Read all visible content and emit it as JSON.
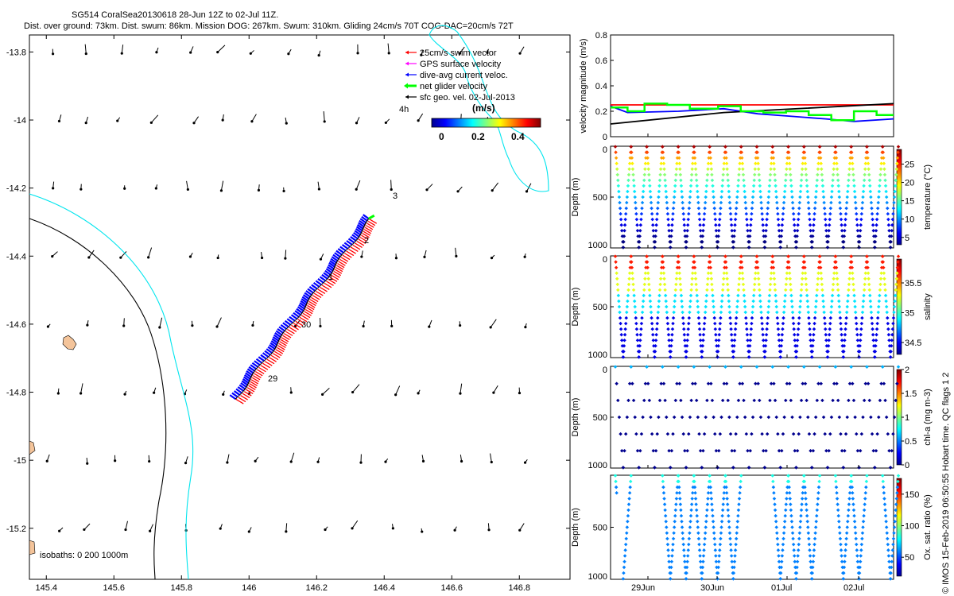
{
  "header": {
    "line1": "SG514 CoralSea20130618 28-Jun 12Z to 02-Jul 11Z.",
    "line2": "Dist. over ground: 73km. Dist. swum: 86km. Mission DOG: 267km. Swum: 310km. Gliding 24cm/s 70T COG-DAC=20cm/s 72T"
  },
  "map": {
    "legend": [
      {
        "label": "25cm/s swim vector",
        "color": "#ff0000"
      },
      {
        "label": "GPS surface velocity",
        "color": "#ff00ff"
      },
      {
        "label": "dive-avg current veloc.",
        "color": "#0000ff"
      },
      {
        "label": "net glider velocity",
        "color": "#00ff00"
      },
      {
        "label": "sfc geo. vel. 02-Jul-2013",
        "color": "#000000"
      }
    ],
    "colorbar_unit": "(m/s)",
    "colorbar_ticks": [
      "0",
      "0.2",
      "0.4"
    ],
    "isobath_label": "isobaths: 0   200  1000m",
    "age_label": "4h",
    "day_labels": [
      "3",
      "2",
      "1",
      "30",
      "29"
    ],
    "track_start": [
      145.96,
      -14.82
    ],
    "track_end": [
      146.36,
      -14.29
    ],
    "isobath_colors": {
      "c0": "#000000",
      "c200": "#000000",
      "c1000": "#00e5ee"
    }
  },
  "chart_data": [
    {
      "type": "scatter",
      "title": "",
      "xlim": [
        145.35,
        146.95
      ],
      "ylim": [
        -15.35,
        -13.75
      ],
      "x_ticks": [
        "145.4",
        "145.6",
        "145.8",
        "146",
        "146.2",
        "146.4",
        "146.6",
        "146.8"
      ],
      "y_ticks": [
        "-13.8",
        "-14",
        "-14.2",
        "-14.4",
        "-14.6",
        "-14.8",
        "-15",
        "-15.2"
      ],
      "x_tick_values": [
        145.4,
        145.6,
        145.8,
        146.0,
        146.2,
        146.4,
        146.6,
        146.8
      ],
      "y_tick_values": [
        -13.8,
        -14.0,
        -14.2,
        -14.4,
        -14.6,
        -14.8,
        -15.0,
        -15.2
      ]
    },
    {
      "type": "line",
      "ylabel": "velocity magnitude (m/s)",
      "ylim": [
        0,
        0.8
      ],
      "y_ticks": [
        "0",
        "0.2",
        "0.4",
        "0.6",
        "0.8"
      ],
      "y_tick_values": [
        0,
        0.2,
        0.4,
        0.6,
        0.8
      ],
      "xlim": [
        0,
        5
      ],
      "series": [
        {
          "color": "#ff0000",
          "x": [
            0,
            5
          ],
          "y": [
            0.25,
            0.25
          ]
        },
        {
          "color": "#0000ff",
          "x": [
            0,
            0.3,
            1.2,
            2.0,
            2.6,
            3.2,
            3.8,
            4.3,
            5
          ],
          "y": [
            0.24,
            0.19,
            0.2,
            0.22,
            0.18,
            0.16,
            0.14,
            0.12,
            0.14
          ]
        },
        {
          "color": "#000000",
          "x": [
            0,
            2,
            5
          ],
          "y": [
            0.1,
            0.19,
            0.26
          ]
        },
        {
          "color": "#00ff00",
          "x": [
            0,
            0.3,
            0.3,
            0.6,
            0.6,
            1.0,
            1.0,
            1.4,
            1.4,
            1.9,
            1.9,
            2.3,
            2.3,
            2.7,
            2.7,
            3.1,
            3.1,
            3.5,
            3.5,
            3.9,
            3.9,
            4.3,
            4.3,
            4.7,
            4.7,
            5
          ],
          "y": [
            0.23,
            0.23,
            0.2,
            0.2,
            0.26,
            0.26,
            0.25,
            0.25,
            0.22,
            0.22,
            0.24,
            0.24,
            0.2,
            0.2,
            0.19,
            0.19,
            0.2,
            0.2,
            0.17,
            0.17,
            0.13,
            0.13,
            0.2,
            0.2,
            0.17,
            0.17
          ]
        }
      ]
    },
    {
      "type": "scatter",
      "ylabel": "Depth (m)",
      "clabel": "temperature (°C)",
      "y_ticks": [
        "0",
        "500",
        "1000"
      ],
      "c_ticks": [
        "5",
        "10",
        "15",
        "20",
        "25"
      ],
      "c_tick_values": [
        5,
        10,
        15,
        20,
        25
      ],
      "clim": [
        3,
        29
      ],
      "dives": 18,
      "note": "full depth profiles"
    },
    {
      "type": "scatter",
      "ylabel": "Depth (m)",
      "clabel": "salinity",
      "y_ticks": [
        "0",
        "500",
        "1000"
      ],
      "c_ticks": [
        "34.5",
        "35",
        "35.5"
      ],
      "c_tick_values": [
        34.5,
        35,
        35.5
      ],
      "clim": [
        34.3,
        35.9
      ],
      "dives": 18
    },
    {
      "type": "scatter",
      "ylabel": "Depth (m)",
      "clabel": "chl-a (mg m-3)",
      "y_ticks": [
        "0",
        "500",
        "1000"
      ],
      "c_ticks": [
        "0",
        "0.5",
        "1",
        "1.5",
        "2"
      ],
      "c_tick_values": [
        0,
        0.5,
        1,
        1.5,
        2
      ],
      "clim": [
        0,
        2
      ],
      "dives": 18
    },
    {
      "type": "scatter",
      "ylabel": "Depth (m)",
      "clabel": "Ox. sat. ratio (%)",
      "y_ticks": [
        "500",
        "1000"
      ],
      "c_ticks": [
        "50",
        "100",
        "150"
      ],
      "c_tick_values": [
        50,
        100,
        150
      ],
      "clim": [
        20,
        175
      ],
      "dives": 18,
      "x_ticks": [
        "29Jun",
        "30Jun",
        "01Jul",
        "02Jul"
      ]
    }
  ],
  "footer": {
    "credit": "© IMOS 15-Feb-2019 06:50:55 Hobart time. QC flags 1  2"
  }
}
